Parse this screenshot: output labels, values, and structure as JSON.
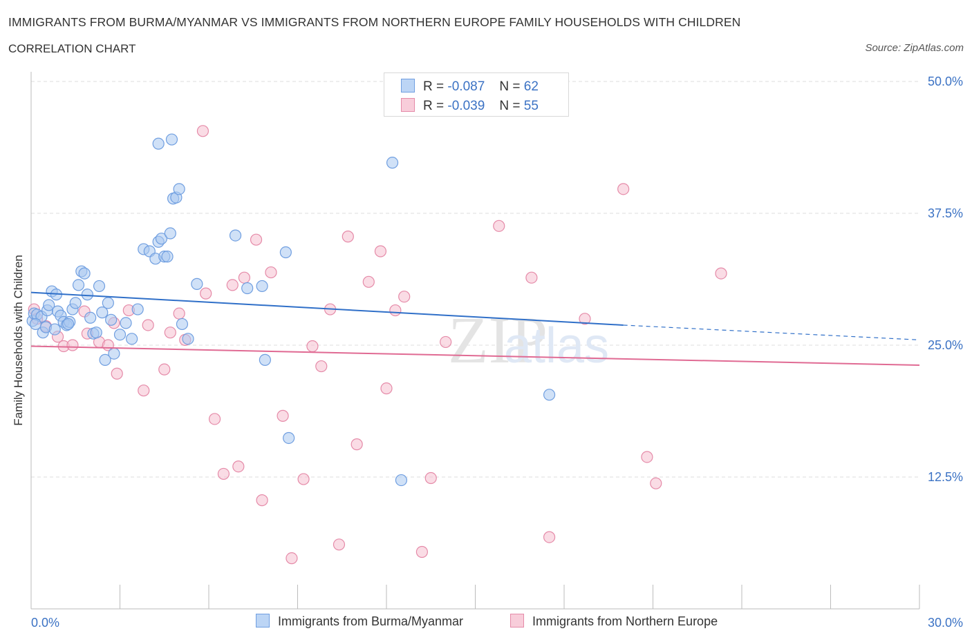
{
  "header": {
    "title": "IMMIGRANTS FROM BURMA/MYANMAR VS IMMIGRANTS FROM NORTHERN EUROPE FAMILY HOUSEHOLDS WITH CHILDREN",
    "subtitle": "CORRELATION CHART",
    "source": "Source: ZipAtlas.com"
  },
  "legend": {
    "rows": [
      {
        "r_label": "R =",
        "r_value": "-0.087",
        "n_label": "N =",
        "n_value": "62"
      },
      {
        "r_label": "R =",
        "r_value": "-0.039",
        "n_label": "N =",
        "n_value": "55"
      }
    ]
  },
  "colors": {
    "blue_fill": "#a9c8f0",
    "blue_stroke": "#6f9ee0",
    "blue_line": "#2f6fc8",
    "pink_fill": "#f5bfd0",
    "pink_stroke": "#e58aa8",
    "pink_line": "#e06a93",
    "axis_text": "#3b72c4",
    "grid": "#dddddd"
  },
  "chart_data": {
    "type": "scatter",
    "title": "IMMIGRANTS FROM BURMA/MYANMAR VS IMMIGRANTS FROM NORTHERN EUROPE FAMILY HOUSEHOLDS WITH CHILDREN",
    "xlabel": "",
    "ylabel": "Family Households with Children",
    "xlim": [
      0,
      30
    ],
    "ylim": [
      0,
      50
    ],
    "x_tick_labels": [
      "0.0%",
      "30.0%"
    ],
    "y_tick_labels": [
      "12.5%",
      "25.0%",
      "37.5%",
      "50.0%"
    ],
    "y_ticks": [
      12.5,
      25,
      37.5,
      50
    ],
    "grid": true,
    "legend_position": "top-center",
    "watermark": "ZIPatlas",
    "series": [
      {
        "name": "Immigrants from Burma/Myanmar",
        "r": -0.087,
        "n": 62,
        "trend": {
          "x0": 0,
          "y0": 30.0,
          "x1": 20.0,
          "y1": 26.9,
          "dashed_to_x": 30,
          "dashed_to_y": 25.5
        },
        "points": [
          [
            0.05,
            27.3
          ],
          [
            0.1,
            28.0
          ],
          [
            0.2,
            27.9
          ],
          [
            0.35,
            27.7
          ],
          [
            0.4,
            26.2
          ],
          [
            0.5,
            26.7
          ],
          [
            0.55,
            28.3
          ],
          [
            0.6,
            28.8
          ],
          [
            0.7,
            30.1
          ],
          [
            0.8,
            26.5
          ],
          [
            0.85,
            29.8
          ],
          [
            0.9,
            28.2
          ],
          [
            1.0,
            27.8
          ],
          [
            1.1,
            27.2
          ],
          [
            1.2,
            26.9
          ],
          [
            1.3,
            27.2
          ],
          [
            1.4,
            28.4
          ],
          [
            1.5,
            29.0
          ],
          [
            1.6,
            30.7
          ],
          [
            1.7,
            32.0
          ],
          [
            1.8,
            31.8
          ],
          [
            1.9,
            29.8
          ],
          [
            2.0,
            27.6
          ],
          [
            2.1,
            26.1
          ],
          [
            2.2,
            26.2
          ],
          [
            2.3,
            30.6
          ],
          [
            2.4,
            28.1
          ],
          [
            2.5,
            23.6
          ],
          [
            2.6,
            29.0
          ],
          [
            2.7,
            27.4
          ],
          [
            2.8,
            24.2
          ],
          [
            3.0,
            26.0
          ],
          [
            3.2,
            27.1
          ],
          [
            3.4,
            25.6
          ],
          [
            3.6,
            28.4
          ],
          [
            3.8,
            34.1
          ],
          [
            4.0,
            33.9
          ],
          [
            4.2,
            33.2
          ],
          [
            4.3,
            34.8
          ],
          [
            4.4,
            35.1
          ],
          [
            4.5,
            33.4
          ],
          [
            4.6,
            33.4
          ],
          [
            4.7,
            35.6
          ],
          [
            4.8,
            38.9
          ],
          [
            4.9,
            39.0
          ],
          [
            5.0,
            39.8
          ],
          [
            4.3,
            44.1
          ],
          [
            4.75,
            44.5
          ],
          [
            5.1,
            27.0
          ],
          [
            5.3,
            25.6
          ],
          [
            5.6,
            30.8
          ],
          [
            6.9,
            35.4
          ],
          [
            7.3,
            30.4
          ],
          [
            7.8,
            30.6
          ],
          [
            7.9,
            23.6
          ],
          [
            8.6,
            33.8
          ],
          [
            8.7,
            16.2
          ],
          [
            12.2,
            42.3
          ],
          [
            12.5,
            12.2
          ],
          [
            17.5,
            20.3
          ],
          [
            0.15,
            27.0
          ],
          [
            1.25,
            27.0
          ]
        ]
      },
      {
        "name": "Immigrants from Northern Europe",
        "r": -0.039,
        "n": 55,
        "trend": {
          "x0": 0,
          "y0": 24.9,
          "x1": 30,
          "y1": 23.1
        },
        "points": [
          [
            0.1,
            28.4
          ],
          [
            0.2,
            27.5
          ],
          [
            0.5,
            26.8
          ],
          [
            0.9,
            25.8
          ],
          [
            1.1,
            24.9
          ],
          [
            1.4,
            25.0
          ],
          [
            1.9,
            26.1
          ],
          [
            2.3,
            25.3
          ],
          [
            2.6,
            25.0
          ],
          [
            2.9,
            22.3
          ],
          [
            3.3,
            28.3
          ],
          [
            3.8,
            20.7
          ],
          [
            3.95,
            26.9
          ],
          [
            4.5,
            22.7
          ],
          [
            4.7,
            26.2
          ],
          [
            5.0,
            28.0
          ],
          [
            5.2,
            25.5
          ],
          [
            5.8,
            45.3
          ],
          [
            5.9,
            29.9
          ],
          [
            6.2,
            18.0
          ],
          [
            6.5,
            12.8
          ],
          [
            6.8,
            30.7
          ],
          [
            7.0,
            13.5
          ],
          [
            7.2,
            31.4
          ],
          [
            7.6,
            35.0
          ],
          [
            7.8,
            10.3
          ],
          [
            8.1,
            31.9
          ],
          [
            8.5,
            18.3
          ],
          [
            8.8,
            4.8
          ],
          [
            9.2,
            12.3
          ],
          [
            9.5,
            24.9
          ],
          [
            9.8,
            23.0
          ],
          [
            10.1,
            28.4
          ],
          [
            10.4,
            6.1
          ],
          [
            10.7,
            35.3
          ],
          [
            11.0,
            15.6
          ],
          [
            11.4,
            31.0
          ],
          [
            11.8,
            33.9
          ],
          [
            12.0,
            20.9
          ],
          [
            12.3,
            28.3
          ],
          [
            12.6,
            29.6
          ],
          [
            13.2,
            5.4
          ],
          [
            13.5,
            12.4
          ],
          [
            14.0,
            25.3
          ],
          [
            14.9,
            49.5
          ],
          [
            15.8,
            36.3
          ],
          [
            16.9,
            31.4
          ],
          [
            17.5,
            6.8
          ],
          [
            18.7,
            27.5
          ],
          [
            20.0,
            39.8
          ],
          [
            20.8,
            14.4
          ],
          [
            21.1,
            11.9
          ],
          [
            23.3,
            31.8
          ],
          [
            1.8,
            28.2
          ],
          [
            2.8,
            27.1
          ]
        ]
      }
    ]
  }
}
